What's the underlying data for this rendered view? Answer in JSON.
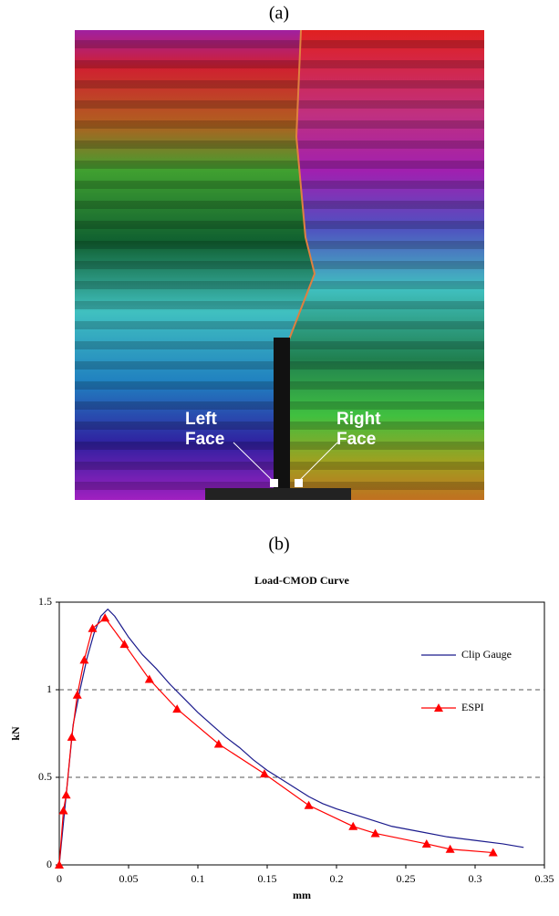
{
  "figure": {
    "label_a": "(a)",
    "label_b": "(b)",
    "left_label": "Left Face",
    "right_label": "Right Face"
  },
  "chart_data": {
    "type": "line",
    "title": "Load-CMOD Curve",
    "x_label": "mm",
    "y_label": "kN",
    "xlim": [
      0,
      0.35
    ],
    "xticks": [
      0,
      0.05,
      0.1,
      0.15,
      0.2,
      0.25,
      0.3,
      0.35
    ],
    "ylim": [
      0,
      1.5
    ],
    "yticks": [
      0,
      0.5,
      1,
      1.5
    ],
    "grid": true,
    "grid_style": "dashed",
    "legend": "upper right",
    "series": [
      {
        "name": "Clip Gauge",
        "color": "#1a1a8c",
        "marker": "none",
        "x": [
          0,
          0.005,
          0.01,
          0.015,
          0.02,
          0.025,
          0.03,
          0.035,
          0.04,
          0.045,
          0.05,
          0.06,
          0.07,
          0.08,
          0.09,
          0.1,
          0.11,
          0.12,
          0.13,
          0.14,
          0.15,
          0.16,
          0.17,
          0.18,
          0.19,
          0.2,
          0.22,
          0.24,
          0.26,
          0.28,
          0.3,
          0.32,
          0.335
        ],
        "values": [
          0,
          0.4,
          0.8,
          1.0,
          1.18,
          1.32,
          1.42,
          1.46,
          1.42,
          1.36,
          1.3,
          1.2,
          1.12,
          1.03,
          0.95,
          0.87,
          0.8,
          0.73,
          0.67,
          0.6,
          0.54,
          0.49,
          0.44,
          0.39,
          0.35,
          0.32,
          0.27,
          0.22,
          0.19,
          0.16,
          0.14,
          0.12,
          0.1
        ]
      },
      {
        "name": "ESPI",
        "color": "#ff0000",
        "marker": "triangle",
        "x": [
          0,
          0.003,
          0.005,
          0.009,
          0.013,
          0.018,
          0.024,
          0.033,
          0.047,
          0.065,
          0.085,
          0.115,
          0.148,
          0.18,
          0.212,
          0.228,
          0.265,
          0.282,
          0.313
        ],
        "values": [
          0,
          0.31,
          0.4,
          0.73,
          0.97,
          1.17,
          1.35,
          1.41,
          1.26,
          1.06,
          0.89,
          0.69,
          0.52,
          0.34,
          0.22,
          0.18,
          0.12,
          0.09,
          0.07
        ]
      }
    ]
  }
}
